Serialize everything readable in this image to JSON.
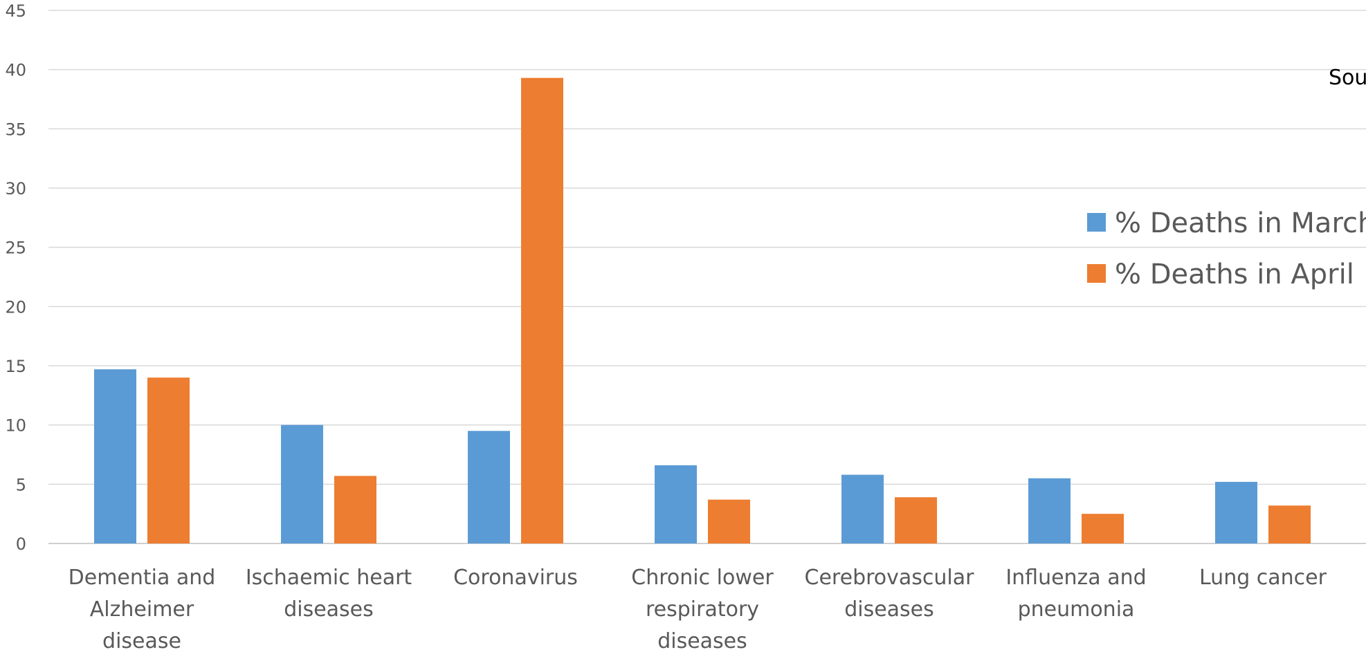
{
  "chart_data": {
    "type": "bar",
    "title": "",
    "xlabel": "",
    "ylabel": "",
    "ylim": [
      0,
      45
    ],
    "y_ticks": [
      0,
      5,
      10,
      15,
      20,
      25,
      30,
      35,
      40,
      45
    ],
    "grid": true,
    "legend_position": "right",
    "categories": [
      [
        "Dementia and",
        "Alzheimer",
        "disease"
      ],
      [
        "Ischaemic heart",
        "diseases"
      ],
      [
        "Coronavirus"
      ],
      [
        "Chronic lower",
        "respiratory",
        "diseases"
      ],
      [
        "Cerebrovascular",
        "diseases"
      ],
      [
        "Influenza and",
        "pneumonia"
      ],
      [
        "Lung cancer"
      ]
    ],
    "series": [
      {
        "name": "% Deaths in March",
        "color": "#5B9BD5",
        "values": [
          14.7,
          10.0,
          9.5,
          6.6,
          5.8,
          5.5,
          5.2
        ]
      },
      {
        "name": "% Deaths in April",
        "color": "#ED7D31",
        "values": [
          14.0,
          5.7,
          39.3,
          3.7,
          3.9,
          2.5,
          3.2
        ]
      }
    ],
    "annotation": "Sou"
  }
}
